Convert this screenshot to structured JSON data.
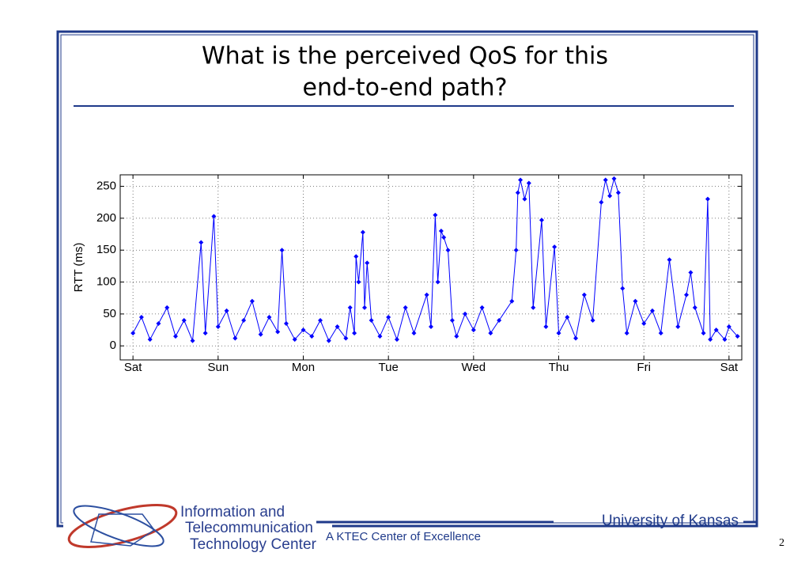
{
  "slide": {
    "title": [
      "What is the perceived QoS for this",
      "end-to-end path?"
    ],
    "logo_text": [
      "Information and",
      "Telecommunication",
      "Technology Center"
    ],
    "tagline": "A KTEC Center of Excellence",
    "institution": "University of Kansas",
    "page_number": "2"
  },
  "chart_data": {
    "type": "line",
    "ylabel": "RTT (ms)",
    "color": "#0000ff",
    "grid": true,
    "xlim": [
      -0.15,
      7.15
    ],
    "ylim": [
      -22,
      268
    ],
    "xticks": [
      {
        "value": 0,
        "label": "Sat"
      },
      {
        "value": 1,
        "label": "Sun"
      },
      {
        "value": 2,
        "label": "Mon"
      },
      {
        "value": 3,
        "label": "Tue"
      },
      {
        "value": 4,
        "label": "Wed"
      },
      {
        "value": 5,
        "label": "Thu"
      },
      {
        "value": 6,
        "label": "Fri"
      },
      {
        "value": 7,
        "label": "Sat"
      }
    ],
    "yticks": [
      0,
      50,
      100,
      150,
      200,
      250
    ],
    "x": [
      0,
      0.1,
      0.2,
      0.3,
      0.4,
      0.5,
      0.6,
      0.7,
      0.8,
      0.85,
      0.95,
      1.0,
      1.1,
      1.2,
      1.3,
      1.4,
      1.5,
      1.6,
      1.7,
      1.75,
      1.8,
      1.9,
      2.0,
      2.1,
      2.2,
      2.3,
      2.4,
      2.5,
      2.55,
      2.6,
      2.62,
      2.65,
      2.7,
      2.72,
      2.75,
      2.8,
      2.9,
      3.0,
      3.1,
      3.2,
      3.3,
      3.45,
      3.5,
      3.55,
      3.58,
      3.62,
      3.65,
      3.7,
      3.75,
      3.8,
      3.9,
      4.0,
      4.1,
      4.2,
      4.3,
      4.45,
      4.5,
      4.52,
      4.55,
      4.6,
      4.65,
      4.7,
      4.8,
      4.85,
      4.95,
      5.0,
      5.1,
      5.2,
      5.3,
      5.4,
      5.5,
      5.55,
      5.6,
      5.65,
      5.7,
      5.75,
      5.8,
      5.9,
      6.0,
      6.1,
      6.2,
      6.3,
      6.4,
      6.5,
      6.55,
      6.6,
      6.7,
      6.75,
      6.78,
      6.85,
      6.95,
      7.0,
      7.1
    ],
    "values": [
      20,
      45,
      10,
      35,
      60,
      15,
      40,
      8,
      162,
      20,
      203,
      30,
      55,
      12,
      40,
      70,
      18,
      45,
      22,
      150,
      35,
      10,
      25,
      15,
      40,
      8,
      30,
      12,
      60,
      20,
      140,
      100,
      178,
      60,
      130,
      40,
      15,
      45,
      10,
      60,
      20,
      80,
      30,
      205,
      100,
      180,
      170,
      150,
      40,
      15,
      50,
      25,
      60,
      20,
      40,
      70,
      150,
      240,
      260,
      230,
      255,
      60,
      197,
      30,
      155,
      20,
      45,
      12,
      80,
      40,
      225,
      260,
      235,
      262,
      240,
      90,
      20,
      70,
      35,
      55,
      20,
      135,
      30,
      80,
      115,
      60,
      20,
      230,
      10,
      25,
      10,
      30,
      15
    ]
  }
}
